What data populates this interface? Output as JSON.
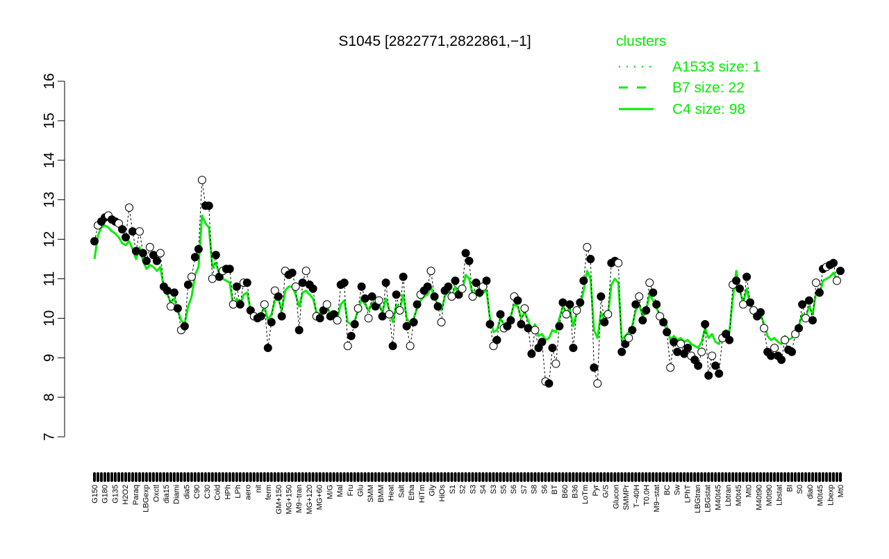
{
  "chart_data": {
    "type": "line",
    "title": "S1045 [2822771,2822861,−1]",
    "xlabel": "",
    "ylabel": "",
    "ylim": [
      7,
      16
    ],
    "y_ticks": [
      7,
      8,
      9,
      10,
      11,
      12,
      13,
      14,
      15,
      16
    ],
    "grid": false,
    "legend": {
      "title": "clusters",
      "placement": "top-right",
      "color": "#00ee00",
      "entries": [
        {
          "label": "A1533 size: 1",
          "style": "dotted"
        },
        {
          "label": "B7 size: 22",
          "style": "dashed"
        },
        {
          "label": "C4 size: 98",
          "style": "solid"
        }
      ]
    },
    "x_tick_labels": [
      "G150",
      "G180",
      "G135",
      "H2O2",
      "Paraq",
      "LBGexp",
      "Oxctl",
      "dia15",
      "Diami",
      "dia5",
      "C90",
      "C30",
      "Cold",
      "HPh",
      "LPh",
      "aero",
      "nit",
      "ferm",
      "GM+150",
      "MG+150",
      "M9−tran",
      "MG+120",
      "MG+60",
      "M/G",
      "Mal",
      "Fru",
      "Glu",
      "SMM",
      "BMM",
      "Heat",
      "Salt",
      "Etha",
      "HiTm",
      "Gly",
      "HiOs",
      "S1",
      "S2",
      "S3",
      "S4",
      "S3",
      "S5",
      "S6",
      "S7",
      "S8",
      "S6",
      "BT",
      "B60",
      "B36",
      "LoTm",
      "Pyr",
      "G/S",
      "Glucon",
      "SMMPr",
      "T−40H",
      "T0.0H",
      "M9−stat",
      "BC",
      "Sw",
      "LPhT",
      "LBGtran",
      "LBGstat",
      "M40t45",
      "Lbtran",
      "M0t45",
      "Mt0",
      "M40t90",
      "M0t90",
      "Lbstat",
      "BI",
      "S0",
      "dia0",
      "M0t45",
      "Lbexp",
      "Mt0"
    ],
    "series": [
      {
        "name": "",
        "color": "#000000",
        "values": [
          11.95,
          12.35,
          12.45,
          12.55,
          12.6,
          12.5,
          12.45,
          12.4,
          12.25,
          12.05,
          12.8,
          12.2,
          11.7,
          12.2,
          11.65,
          11.45,
          11.8,
          11.6,
          11.45,
          11.65,
          10.8,
          10.7,
          10.3,
          10.65,
          10.25,
          9.7,
          9.8,
          10.85,
          11.05,
          11.55,
          11.75,
          13.5,
          12.85,
          12.85,
          11.0,
          11.6,
          11.05,
          11.2,
          11.25,
          11.25,
          10.35,
          10.8,
          10.35,
          10.9,
          10.9,
          10.2,
          10.05,
          10.0,
          10.05,
          10.35,
          9.25,
          9.9,
          10.7,
          10.55,
          10.05,
          11.2,
          11.1,
          11.15,
          10.8,
          9.7,
          10.9,
          11.2,
          10.85,
          10.75,
          10.05,
          10.0,
          10.2,
          10.35,
          10.05,
          10.1,
          9.95,
          10.85,
          10.9,
          9.3,
          9.55,
          9.85,
          10.25,
          10.8,
          10.5,
          10.0,
          10.55,
          10.3,
          10.45,
          10.05,
          10.9,
          10.1,
          9.3,
          10.6,
          10.2,
          11.05,
          9.8,
          9.3,
          9.9,
          10.35,
          10.6,
          10.7,
          10.8,
          11.2,
          10.55,
          10.3,
          9.9,
          10.7,
          10.8,
          10.55,
          10.95,
          10.6,
          10.75,
          11.65,
          11.45,
          10.55,
          10.9,
          10.65,
          10.8,
          10.95,
          9.85,
          9.3,
          9.45,
          10.1,
          9.75,
          9.8,
          9.95,
          10.55,
          10.45,
          9.85,
          10.25,
          9.75,
          9.1,
          9.7,
          9.25,
          9.4,
          8.4,
          8.35,
          9.25,
          8.85,
          9.8,
          10.4,
          10.1,
          10.35,
          9.25,
          10.2,
          10.4,
          10.95,
          11.8,
          11.5,
          8.75,
          8.35,
          10.55,
          9.9,
          10.1,
          11.4,
          11.45,
          11.4,
          9.15,
          9.35,
          9.5,
          9.7,
          10.35,
          10.55,
          9.95,
          10.2,
          10.9,
          10.65,
          10.35,
          10.05,
          9.9,
          9.65,
          8.75,
          9.4,
          9.15,
          9.35,
          9.1,
          9.25,
          9.05,
          8.95,
          8.8,
          9.15,
          9.85,
          8.55,
          9.05,
          8.8,
          8.6,
          9.5,
          9.6,
          9.45,
          10.85,
          10.95,
          10.75,
          10.35,
          11.05,
          10.4,
          10.2,
          10.05,
          10.15,
          9.75,
          9.15,
          9.05,
          9.25,
          9.05,
          8.95,
          9.45,
          9.2,
          9.15,
          9.6,
          9.75,
          10.35,
          10.0,
          10.45,
          9.95,
          10.9,
          10.65,
          11.25,
          11.3,
          11.35,
          11.4,
          10.95,
          11.2
        ]
      },
      {
        "name": "",
        "color": "#00ee00",
        "values": [
          11.5,
          12.1,
          12.3,
          12.35,
          12.3,
          12.2,
          12.15,
          12.05,
          11.9,
          11.85,
          11.95,
          11.75,
          11.5,
          11.8,
          11.45,
          11.25,
          11.35,
          11.3,
          11.2,
          11.3,
          10.75,
          10.6,
          10.4,
          10.5,
          10.2,
          9.95,
          9.85,
          10.3,
          10.55,
          11.1,
          11.3,
          12.6,
          12.4,
          12.3,
          11.3,
          11.4,
          11.1,
          11.0,
          10.95,
          10.9,
          10.3,
          10.5,
          10.35,
          10.6,
          10.65,
          10.2,
          10.05,
          10.0,
          10.1,
          10.3,
          9.95,
          10.1,
          10.45,
          10.5,
          10.2,
          10.7,
          10.8,
          10.8,
          10.6,
          10.3,
          10.65,
          10.7,
          10.6,
          10.5,
          10.15,
          10.1,
          10.2,
          10.3,
          10.1,
          10.15,
          10.0,
          10.35,
          10.45,
          9.9,
          9.85,
          9.95,
          10.2,
          10.5,
          10.35,
          10.2,
          10.4,
          10.3,
          10.35,
          10.15,
          10.5,
          10.2,
          9.9,
          10.35,
          10.2,
          10.6,
          10.0,
          9.85,
          10.0,
          10.25,
          10.45,
          10.55,
          10.6,
          10.8,
          10.5,
          10.35,
          10.2,
          10.55,
          10.7,
          10.55,
          10.8,
          10.6,
          10.7,
          11.1,
          11.0,
          10.6,
          10.7,
          10.55,
          10.65,
          10.7,
          10.0,
          9.65,
          9.7,
          10.0,
          9.85,
          9.9,
          10.05,
          10.35,
          10.3,
          10.0,
          10.15,
          9.95,
          9.7,
          9.85,
          9.55,
          9.6,
          9.45,
          9.5,
          9.7,
          9.65,
          10.0,
          10.3,
          10.15,
          10.25,
          9.8,
          10.15,
          10.3,
          10.7,
          11.2,
          11.0,
          9.7,
          9.5,
          10.15,
          9.95,
          10.05,
          10.85,
          11.0,
          10.9,
          9.45,
          9.55,
          9.65,
          9.8,
          10.2,
          10.35,
          10.05,
          10.2,
          10.6,
          10.45,
          10.25,
          10.1,
          10.0,
          9.8,
          9.45,
          9.55,
          9.45,
          9.5,
          9.4,
          9.45,
          9.35,
          9.3,
          9.25,
          9.4,
          9.75,
          9.5,
          9.6,
          9.4,
          9.35,
          9.6,
          9.7,
          9.65,
          10.5,
          11.2,
          10.7,
          10.4,
          10.75,
          10.35,
          10.2,
          10.1,
          10.1,
          9.85,
          9.55,
          9.45,
          9.5,
          9.4,
          9.35,
          9.55,
          9.45,
          9.5,
          9.7,
          9.8,
          10.1,
          10.0,
          10.3,
          10.1,
          10.65,
          10.6,
          10.95,
          11.0,
          11.05,
          11.15,
          10.95,
          11.0
        ]
      }
    ]
  }
}
